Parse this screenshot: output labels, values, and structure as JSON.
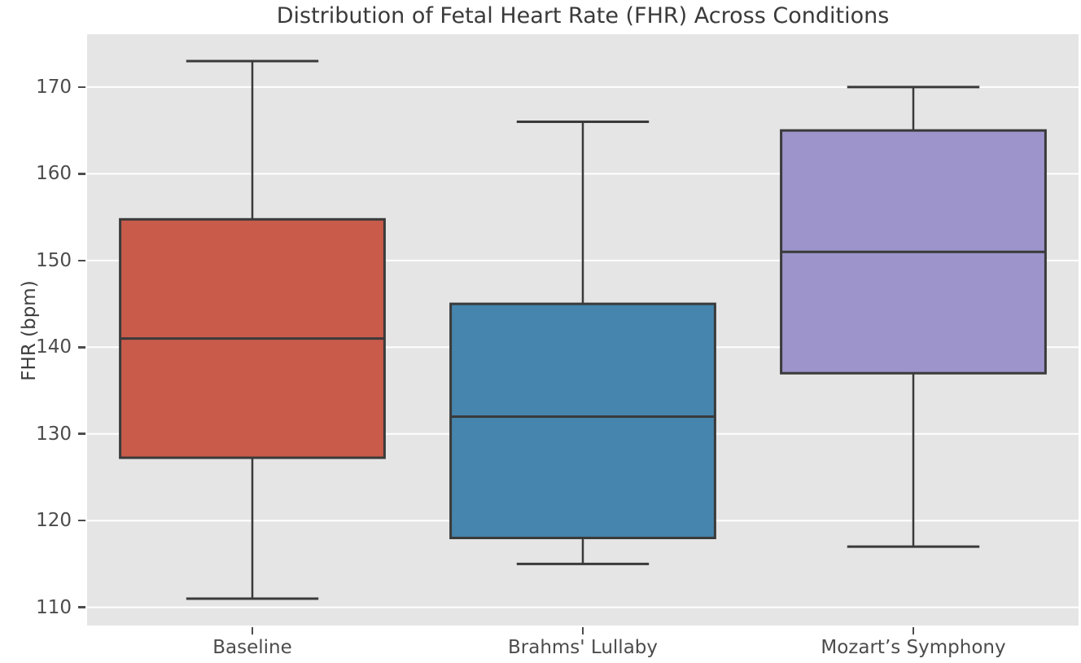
{
  "chart_data": {
    "type": "box",
    "title": "Distribution of Fetal Heart Rate (FHR) Across Conditions",
    "ylabel": "FHR (bpm)",
    "xlabel": "",
    "categories": [
      "Baseline",
      "Brahms' Lullaby",
      "Mozart’s Symphony"
    ],
    "series": [
      {
        "name": "Baseline",
        "min": 111,
        "q1": 127.25,
        "median": 141,
        "q3": 154.75,
        "max": 173,
        "color": "#c95b4b"
      },
      {
        "name": "Brahms' Lullaby",
        "min": 115,
        "q1": 118,
        "median": 132,
        "q3": 145,
        "max": 166,
        "color": "#4685ad"
      },
      {
        "name": "Mozart’s Symphony",
        "min": 117,
        "q1": 137,
        "median": 151,
        "q3": 165,
        "max": 170,
        "color": "#9c94cb"
      }
    ],
    "yticks": [
      110,
      120,
      130,
      140,
      150,
      160,
      170
    ],
    "ylim": [
      107.9,
      176.1
    ],
    "grid": true,
    "legend": false,
    "style": {
      "plot_bg": "#e5e5e6",
      "grid_color": "#ffffff",
      "box_edge": "#3a3a3a",
      "title_color": "#3a3a3a",
      "tick_color": "#4c4c4c"
    }
  }
}
